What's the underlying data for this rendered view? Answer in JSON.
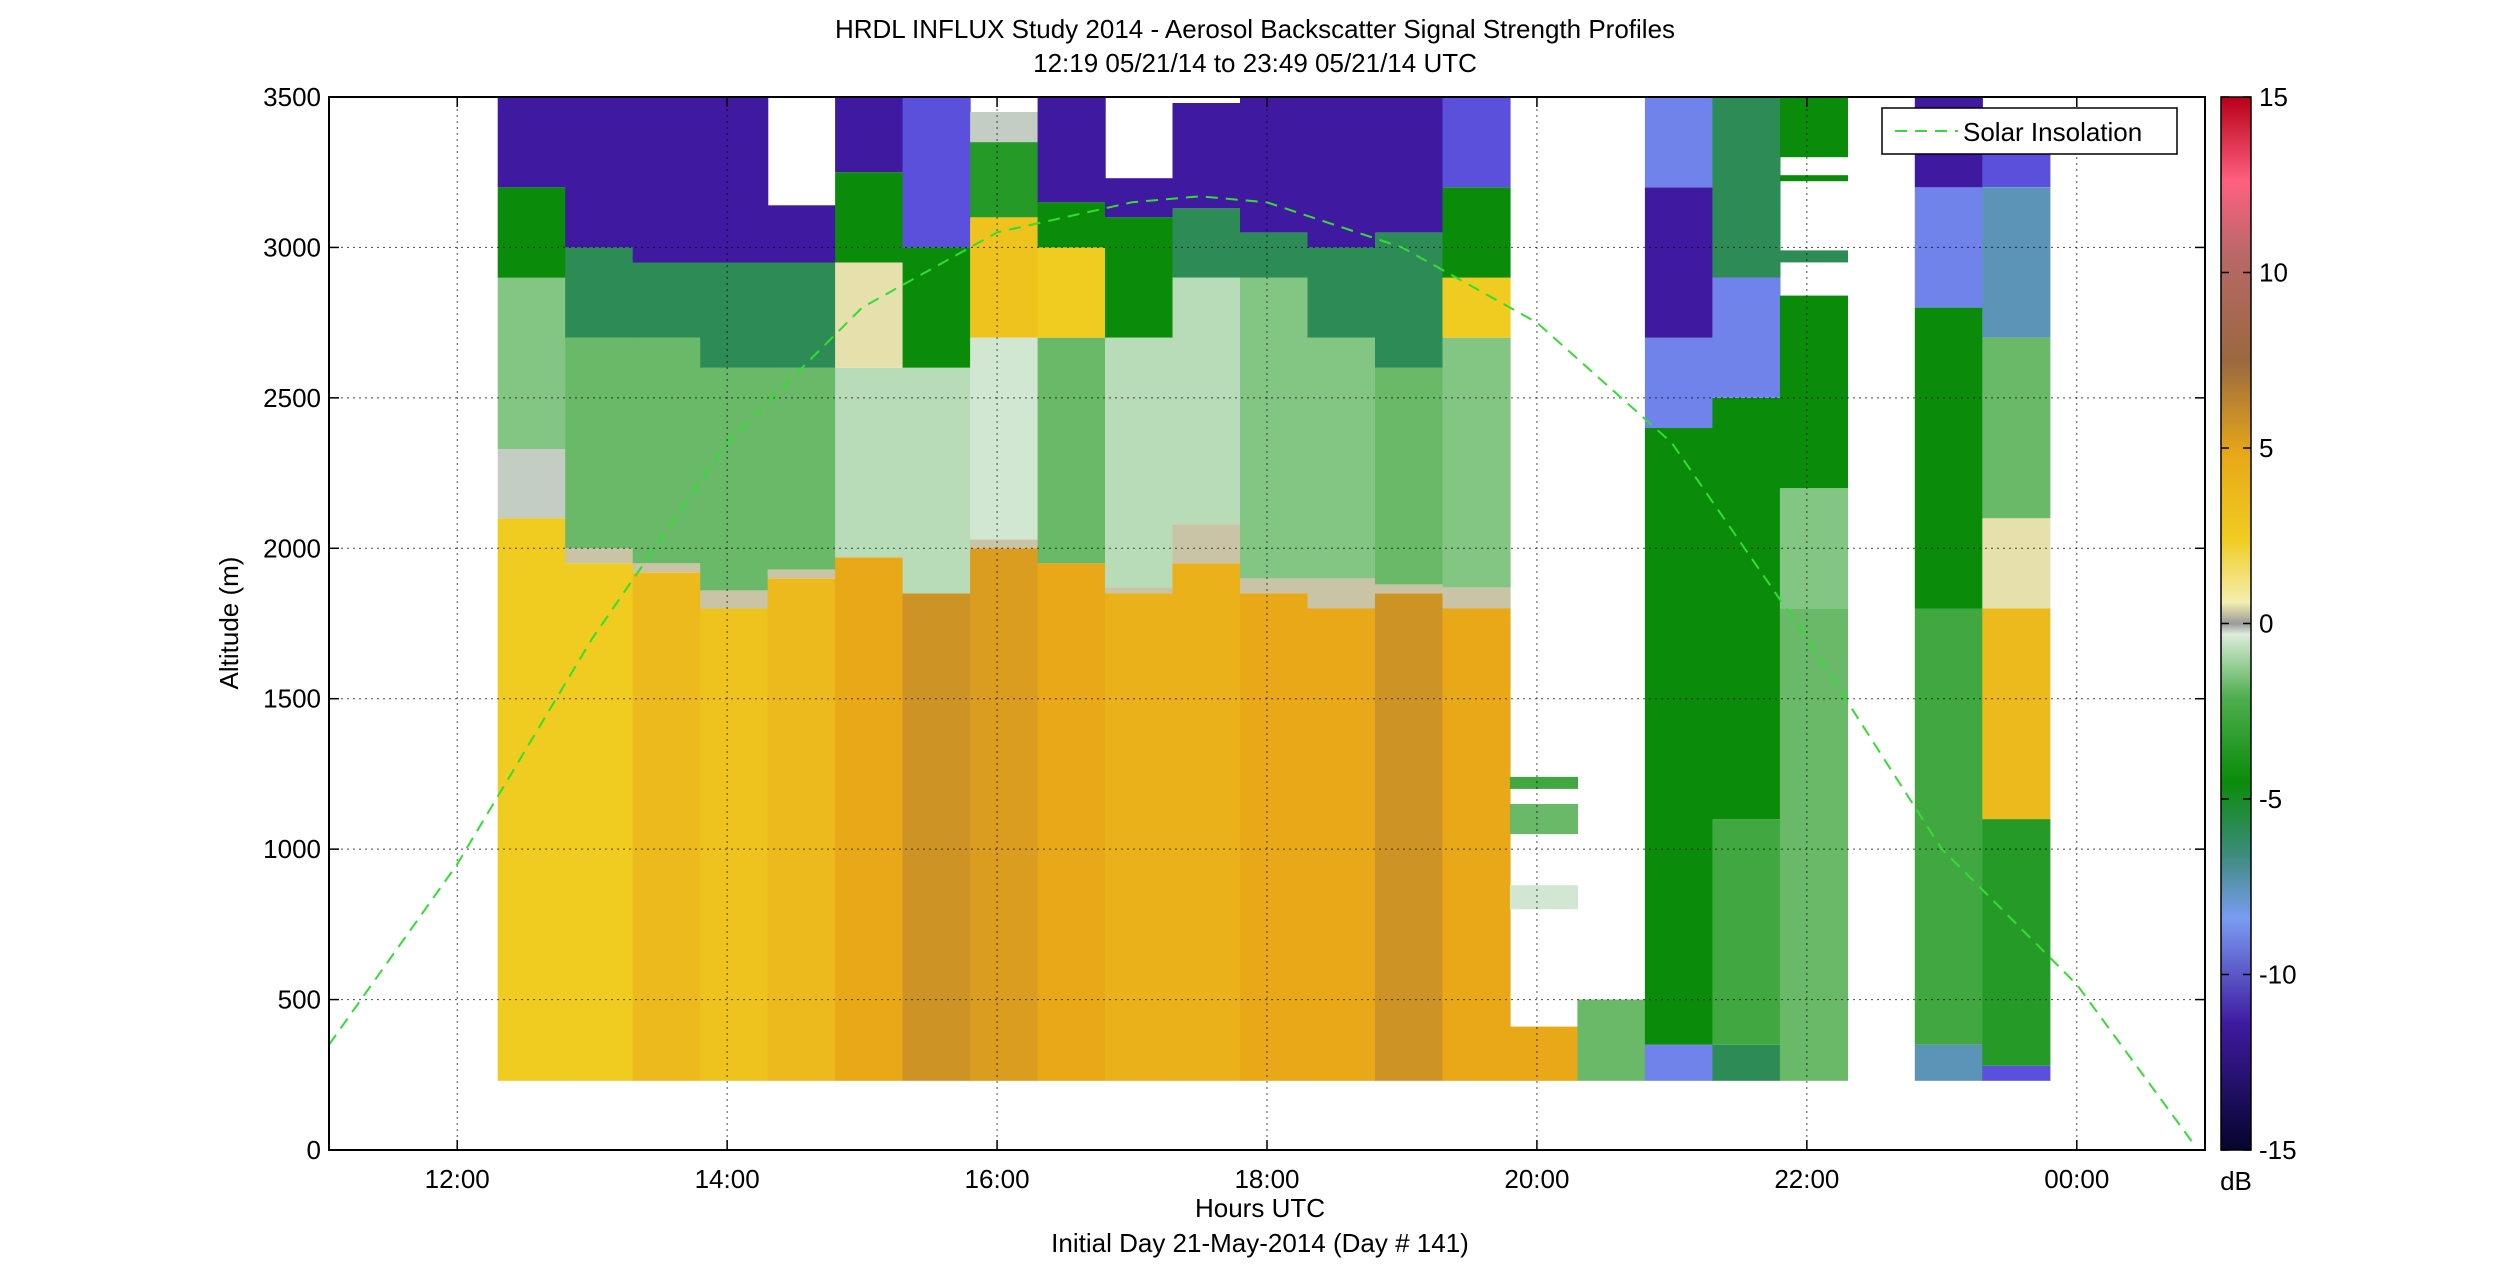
{
  "chart_data": {
    "type": "heatmap",
    "title": "HRDL INFLUX Study 2014 - Aerosol Backscatter Signal Strength Profiles",
    "subtitle": "12:19 05/21/14 to 23:49 05/21/14  UTC",
    "xlabel": "Hours UTC",
    "xlabel2": "Initial Day 21-May-2014 (Day # 141)",
    "ylabel": "Altitude (m)",
    "xlim": [
      11.05,
      24.95
    ],
    "ylim": [
      0,
      3500
    ],
    "x_tick_values": [
      12,
      14,
      16,
      18,
      20,
      22,
      24
    ],
    "x_tick_labels": [
      "12:00",
      "14:00",
      "16:00",
      "18:00",
      "20:00",
      "22:00",
      "00:00"
    ],
    "y_tick_values": [
      0,
      500,
      1000,
      1500,
      2000,
      2500,
      3000,
      3500
    ],
    "y_tick_labels": [
      "0",
      "500",
      "1000",
      "1500",
      "2000",
      "2500",
      "3000",
      "3500"
    ],
    "grid": true,
    "legend": {
      "position": "top-right",
      "entries": [
        "Solar Insolation"
      ]
    },
    "colorbar": {
      "label": "dB",
      "range": [
        -15,
        15
      ],
      "tick_values": [
        15,
        10,
        5,
        0,
        -5,
        -10,
        -15
      ],
      "tick_labels": [
        "15",
        "10",
        "5",
        "0",
        "-5",
        "-10",
        "-15"
      ]
    },
    "solar_insolation": {
      "name": "Solar Insolation",
      "x": [
        11.05,
        12.0,
        13.0,
        14.0,
        15.0,
        16.0,
        17.0,
        17.5,
        18.0,
        19.0,
        20.0,
        21.0,
        22.0,
        23.0,
        24.0,
        24.85
      ],
      "y": [
        350,
        950,
        1700,
        2350,
        2800,
        3050,
        3150,
        3170,
        3150,
        3000,
        2750,
        2350,
        1700,
        1000,
        550,
        30
      ]
    },
    "columns": [
      {
        "t": 12.55,
        "segs": [
          [
            230,
            2100,
            2
          ],
          [
            2100,
            2330,
            -0.5
          ],
          [
            2330,
            2900,
            -2.5
          ],
          [
            2900,
            3200,
            -6
          ],
          [
            3200,
            3500,
            -11
          ]
        ]
      },
      {
        "t": 13.05,
        "segs": [
          [
            230,
            1950,
            2
          ],
          [
            1950,
            2000,
            0.3
          ],
          [
            2000,
            2700,
            -3
          ],
          [
            2700,
            3000,
            -7
          ],
          [
            3000,
            3500,
            -11
          ]
        ]
      },
      {
        "t": 13.55,
        "segs": [
          [
            230,
            1920,
            3
          ],
          [
            1920,
            1950,
            0.3
          ],
          [
            1950,
            2700,
            -3
          ],
          [
            2700,
            2950,
            -7
          ],
          [
            2950,
            3500,
            -11
          ]
        ]
      },
      {
        "t": 14.05,
        "segs": [
          [
            230,
            1800,
            2.5
          ],
          [
            1800,
            1860,
            0.3
          ],
          [
            1860,
            2600,
            -3
          ],
          [
            2600,
            2950,
            -7
          ],
          [
            2950,
            3500,
            -11
          ]
        ]
      },
      {
        "t": 14.55,
        "segs": [
          [
            230,
            1900,
            3
          ],
          [
            1900,
            1930,
            0.3
          ],
          [
            1930,
            2600,
            -3
          ],
          [
            2600,
            2950,
            -7
          ],
          [
            2950,
            3140,
            -11
          ]
        ]
      },
      {
        "t": 15.05,
        "segs": [
          [
            230,
            1970,
            4
          ],
          [
            1970,
            2600,
            -1.5
          ],
          [
            2600,
            2950,
            0.5
          ],
          [
            2950,
            3250,
            -6
          ],
          [
            3250,
            3500,
            -11
          ]
        ]
      },
      {
        "t": 15.55,
        "segs": [
          [
            230,
            1850,
            5
          ],
          [
            1850,
            2600,
            -1.5
          ],
          [
            2600,
            3000,
            -6
          ],
          [
            3000,
            3500,
            -10
          ]
        ]
      },
      {
        "t": 16.05,
        "segs": [
          [
            230,
            2000,
            4.5
          ],
          [
            2000,
            2030,
            0.3
          ],
          [
            2030,
            2700,
            -1
          ],
          [
            2700,
            3100,
            2.5
          ],
          [
            3100,
            3350,
            -5
          ],
          [
            3350,
            3450,
            -0.5
          ]
        ]
      },
      {
        "t": 16.55,
        "segs": [
          [
            230,
            1950,
            4
          ],
          [
            1950,
            2700,
            -3
          ],
          [
            2700,
            3000,
            2
          ],
          [
            3000,
            3150,
            -6
          ],
          [
            3150,
            3500,
            -11
          ]
        ]
      },
      {
        "t": 17.05,
        "segs": [
          [
            230,
            1850,
            3.5
          ],
          [
            1850,
            1870,
            0.3
          ],
          [
            1870,
            2700,
            -1.5
          ],
          [
            2700,
            3100,
            -6
          ],
          [
            3100,
            3230,
            -11
          ]
        ]
      },
      {
        "t": 17.55,
        "segs": [
          [
            230,
            1950,
            3.5
          ],
          [
            1950,
            2080,
            0.3
          ],
          [
            2080,
            2900,
            -1.5
          ],
          [
            2900,
            3130,
            -7
          ],
          [
            3130,
            3480,
            -11
          ]
        ]
      },
      {
        "t": 18.05,
        "segs": [
          [
            230,
            1850,
            4
          ],
          [
            1850,
            1900,
            0.3
          ],
          [
            1900,
            2900,
            -2.5
          ],
          [
            2900,
            3050,
            -7
          ],
          [
            3050,
            3500,
            -11
          ]
        ]
      },
      {
        "t": 18.55,
        "segs": [
          [
            230,
            1800,
            4
          ],
          [
            1800,
            1900,
            0.3
          ],
          [
            1900,
            2700,
            -2.5
          ],
          [
            2700,
            3000,
            -7
          ],
          [
            3000,
            3500,
            -11
          ]
        ]
      },
      {
        "t": 19.05,
        "segs": [
          [
            230,
            1850,
            5
          ],
          [
            1850,
            1880,
            0.3
          ],
          [
            1880,
            2600,
            -3
          ],
          [
            2600,
            3050,
            -7
          ],
          [
            3050,
            3500,
            -11
          ]
        ]
      },
      {
        "t": 19.55,
        "segs": [
          [
            230,
            1800,
            4
          ],
          [
            1800,
            1870,
            0.3
          ],
          [
            1870,
            2700,
            -2.5
          ],
          [
            2700,
            2900,
            2
          ],
          [
            2900,
            3200,
            -6
          ],
          [
            3200,
            3500,
            -10
          ]
        ]
      },
      {
        "t": 20.05,
        "segs": [
          [
            230,
            410,
            4
          ],
          [
            800,
            880,
            -1
          ],
          [
            1050,
            1150,
            -3
          ],
          [
            1200,
            1240,
            -4
          ]
        ]
      },
      {
        "t": 20.55,
        "segs": [
          [
            230,
            500,
            -3
          ]
        ]
      },
      {
        "t": 21.05,
        "segs": [
          [
            230,
            350,
            -9
          ],
          [
            350,
            2400,
            -6
          ],
          [
            2400,
            2700,
            -9
          ],
          [
            2700,
            3200,
            -11
          ],
          [
            3200,
            3500,
            -9
          ]
        ]
      },
      {
        "t": 21.55,
        "segs": [
          [
            230,
            350,
            -7
          ],
          [
            350,
            1100,
            -4
          ],
          [
            1100,
            2500,
            -6
          ],
          [
            2500,
            2900,
            -9
          ],
          [
            2900,
            3500,
            -7
          ]
        ]
      },
      {
        "t": 22.05,
        "segs": [
          [
            230,
            1800,
            -3
          ],
          [
            1800,
            2200,
            -2.5
          ],
          [
            2200,
            2840,
            -6
          ],
          [
            2950,
            2990,
            -7
          ],
          [
            3220,
            3240,
            -6
          ],
          [
            3300,
            3500,
            -6
          ]
        ]
      },
      {
        "t": 23.05,
        "segs": [
          [
            230,
            350,
            -8
          ],
          [
            350,
            1800,
            -4
          ],
          [
            1800,
            2800,
            -6
          ],
          [
            2800,
            3200,
            -9
          ],
          [
            3200,
            3500,
            -11
          ]
        ]
      },
      {
        "t": 23.55,
        "segs": [
          [
            230,
            280,
            -10
          ],
          [
            280,
            1100,
            -5
          ],
          [
            1100,
            1800,
            3
          ],
          [
            1800,
            2100,
            0.5
          ],
          [
            2100,
            2700,
            -3
          ],
          [
            2700,
            3200,
            -8
          ],
          [
            3200,
            3350,
            -10
          ]
        ]
      }
    ]
  }
}
